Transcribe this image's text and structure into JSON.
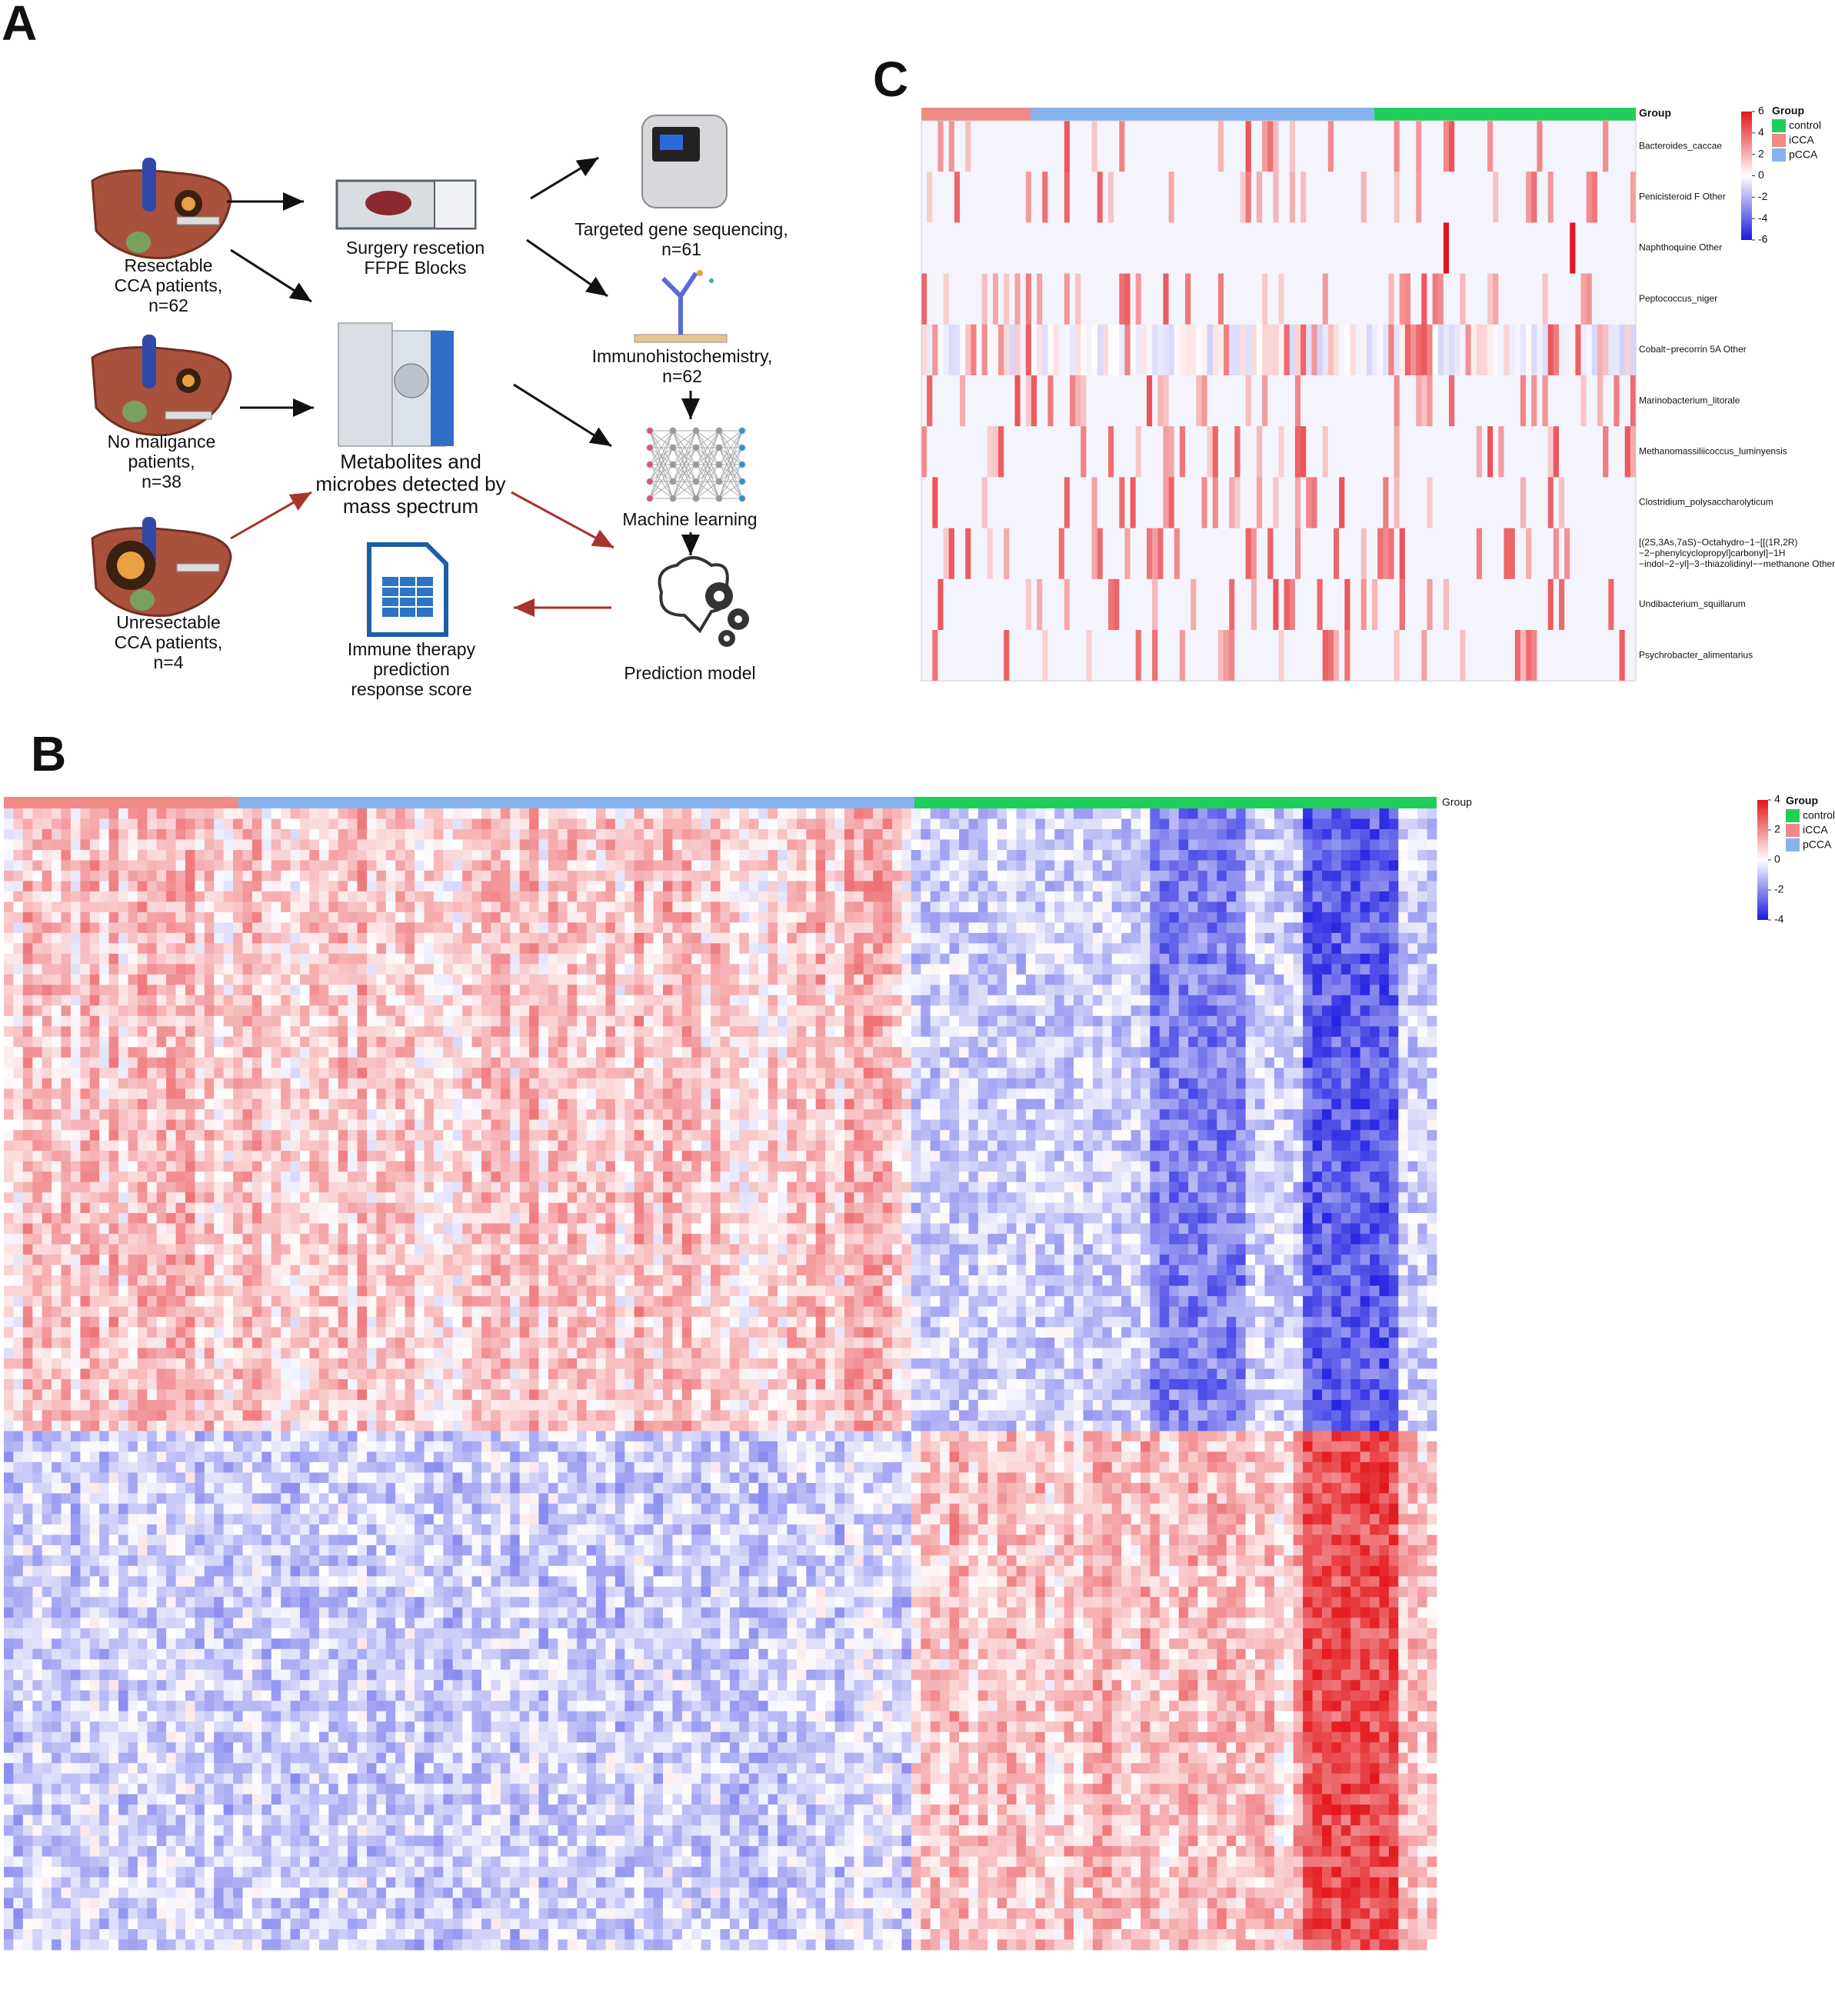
{
  "panel_a": {
    "label": "A",
    "items": [
      {
        "lines": [
          "Resectable",
          "CCA patients,",
          "n=62"
        ]
      },
      {
        "lines": [
          "No maligance",
          "patients,",
          "n=38"
        ]
      },
      {
        "lines": [
          "Unresectable",
          "CCA patients,",
          "n=4"
        ]
      },
      {
        "lines": [
          "Surgery rescetion",
          "FFPE Blocks"
        ]
      },
      {
        "lines": [
          "Metabolites and",
          "microbes detected by",
          "mass spectrum"
        ]
      },
      {
        "lines": [
          "Immune therapy",
          "prediction",
          "response score"
        ]
      },
      {
        "lines": [
          "Targeted gene sequencing,",
          "n=61"
        ]
      },
      {
        "lines": [
          "Immunohistochemistry,",
          "n=62"
        ]
      },
      {
        "lines": [
          "Machine learning"
        ]
      },
      {
        "lines": [
          "Prediction model"
        ]
      }
    ]
  },
  "panel_b": {
    "label": "B",
    "group_label": "Group",
    "legend": {
      "title": "Group",
      "groups": [
        {
          "name": "control",
          "color": "#1fcf5a"
        },
        {
          "name": "iCCA",
          "color": "#f08a84"
        },
        {
          "name": "pCCA",
          "color": "#86b3ee"
        }
      ]
    },
    "scale_ticks": [
      4,
      2,
      0,
      -2,
      -4
    ]
  },
  "panel_c": {
    "label": "C",
    "group_label": "Group",
    "rows": [
      {
        "lines": [
          "Bacteroides_caccae"
        ]
      },
      {
        "lines": [
          "Penicisteroid F Other"
        ]
      },
      {
        "lines": [
          "Naphthoquine Other"
        ]
      },
      {
        "lines": [
          "Peptococcus_niger"
        ]
      },
      {
        "lines": [
          "Cobalt−precorrin 5A Other"
        ]
      },
      {
        "lines": [
          "Marinobacterium_litorale"
        ]
      },
      {
        "lines": [
          "Methanomassiliicoccus_luminyensis"
        ]
      },
      {
        "lines": [
          "Clostridium_polysaccharolyticum"
        ]
      },
      {
        "lines": [
          "[(2S,3As,7aS)−Octahydro−1−[[(1R,2R)",
          "−2−phenylcyclopropyl]carbonyl]−1H",
          "−indol−2−yl]−3−thiazolidinyl−−methanone Other"
        ]
      },
      {
        "lines": [
          "Undibacterium_squillarum"
        ]
      },
      {
        "lines": [
          "Psychrobacter_alimentarius"
        ]
      }
    ],
    "legend": {
      "title": "Group",
      "groups": [
        {
          "name": "control",
          "color": "#1fcf5a"
        },
        {
          "name": "iCCA",
          "color": "#f08a84"
        },
        {
          "name": "pCCA",
          "color": "#86b3ee"
        }
      ]
    },
    "scale_ticks": [
      6,
      4,
      2,
      0,
      -2,
      -4,
      -6
    ]
  }
}
